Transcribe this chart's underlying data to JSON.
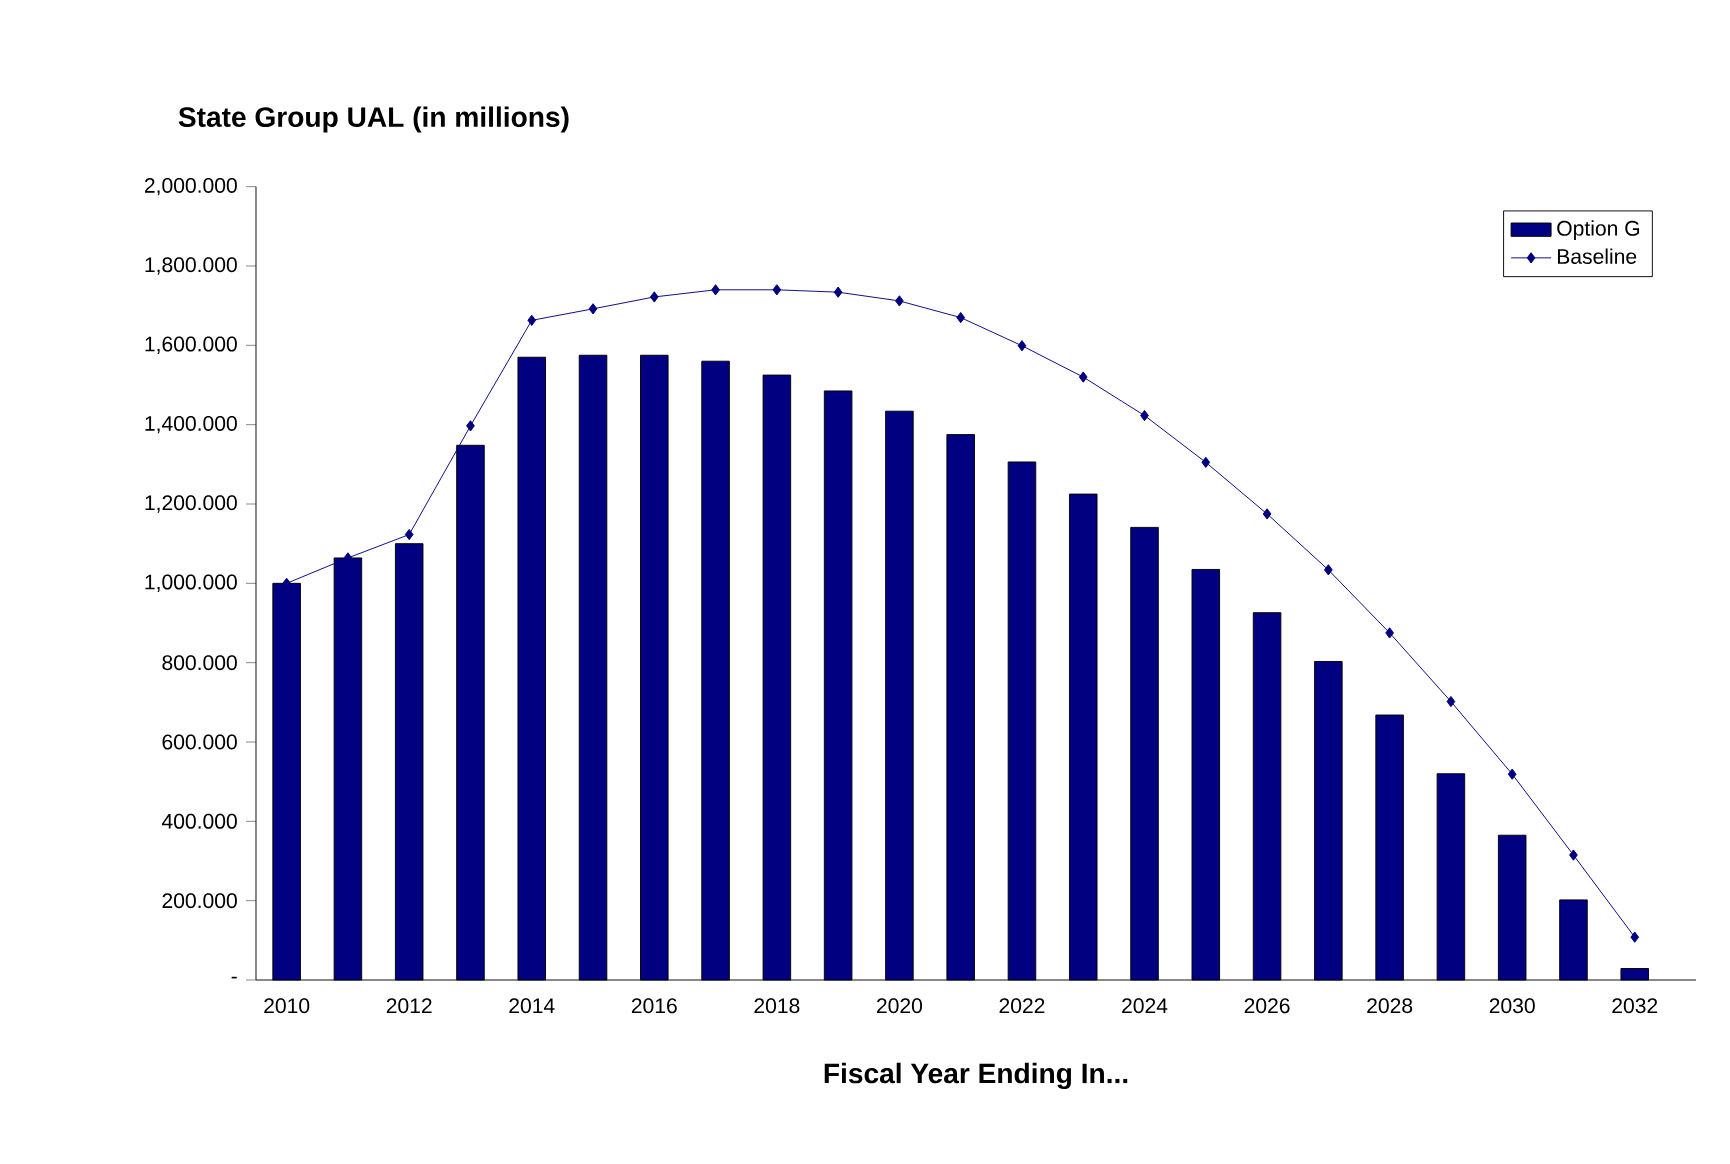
{
  "chart_data": {
    "type": "bar",
    "title": "State Group UAL (in millions)",
    "xlabel": "Fiscal Year Ending In...",
    "categories": [
      "2010",
      null,
      "2012",
      null,
      "2014",
      null,
      "2016",
      null,
      "2018",
      null,
      "2020",
      null,
      "2022",
      null,
      "2024",
      null,
      "2026",
      null,
      "2028",
      null,
      "2030",
      null,
      "2032"
    ],
    "series": [
      {
        "name": "Option G",
        "color": "#000080",
        "values": [
          1000,
          1064,
          1100,
          1348,
          1570,
          1575,
          1575,
          1560,
          1525,
          1485,
          1434,
          1375,
          1306,
          1225,
          1141,
          1035,
          926,
          803,
          668,
          520,
          365,
          202,
          29
        ]
      },
      {
        "name": "Baseline",
        "type": "line",
        "color": "#000080",
        "marker": "diamond",
        "values": [
          1000,
          1064,
          1123,
          1397,
          1663,
          1692,
          1722,
          1740,
          1740,
          1734,
          1712,
          1670,
          1599,
          1520,
          1423,
          1305,
          1175,
          1034,
          875,
          702,
          519,
          315,
          108
        ]
      }
    ],
    "ylim": [
      0,
      2000
    ],
    "yticks": [
      {
        "value": 0,
        "label": "-"
      },
      {
        "value": 200,
        "label": "200.000"
      },
      {
        "value": 400,
        "label": "400.000"
      },
      {
        "value": 600,
        "label": "600.000"
      },
      {
        "value": 800,
        "label": "800.000"
      },
      {
        "value": 1000,
        "label": "1,000.000"
      },
      {
        "value": 1200,
        "label": "1,200.000"
      },
      {
        "value": 1400,
        "label": "1,400.000"
      },
      {
        "value": 1600,
        "label": "1,600.000"
      },
      {
        "value": 1800,
        "label": "1,800.000"
      },
      {
        "value": 2000,
        "label": "2,000.000"
      }
    ],
    "legend": "top right",
    "grid": false
  }
}
